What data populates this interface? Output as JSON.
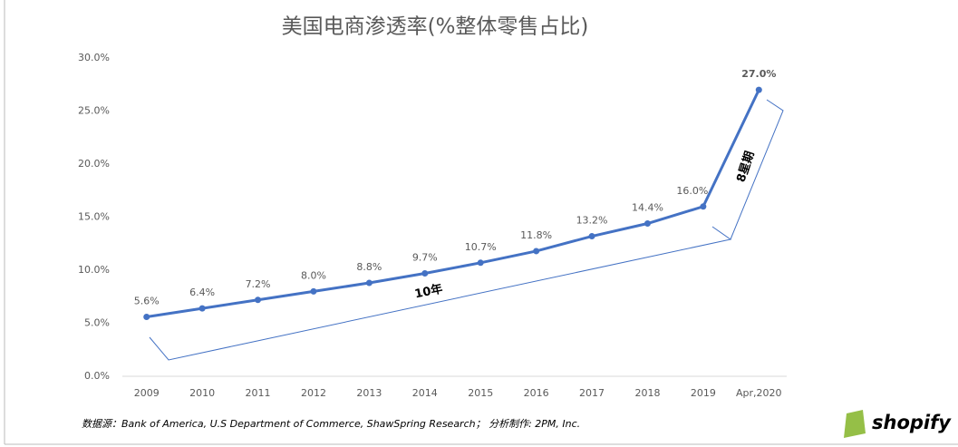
{
  "chart_data": {
    "type": "line",
    "title": "美国电商渗透率(%整体零售占比)",
    "categories": [
      "2009",
      "2010",
      "2011",
      "2012",
      "2013",
      "2014",
      "2015",
      "2016",
      "2017",
      "2018",
      "2019",
      "Apr,2020"
    ],
    "values": [
      5.6,
      6.4,
      7.2,
      8.0,
      8.8,
      9.7,
      10.7,
      11.8,
      13.2,
      14.4,
      16.0,
      27.0
    ],
    "value_labels": [
      "5.6%",
      "6.4%",
      "7.2%",
      "8.0%",
      "8.8%",
      "9.7%",
      "10.7%",
      "11.8%",
      "13.2%",
      "14.4%",
      "16.0%",
      "27.0%"
    ],
    "color": "#4472c4",
    "ylim": [
      0,
      30
    ],
    "yticks": [
      {
        "value": 0,
        "label": "0.0%"
      },
      {
        "value": 5,
        "label": "5.0%"
      },
      {
        "value": 10,
        "label": "10.0%"
      },
      {
        "value": 15,
        "label": "15.0%"
      },
      {
        "value": 20,
        "label": "20.0%"
      },
      {
        "value": 25,
        "label": "25.0%"
      },
      {
        "value": 30,
        "label": "30.0%"
      }
    ],
    "grid": false,
    "annotations": [
      "10年",
      "8星期"
    ]
  },
  "footer": {
    "source": "数据源：Bank of America, U.S Department of Commerce, ShawSpring Research； 分析制作: 2PM, Inc.",
    "logo": "shopify"
  }
}
